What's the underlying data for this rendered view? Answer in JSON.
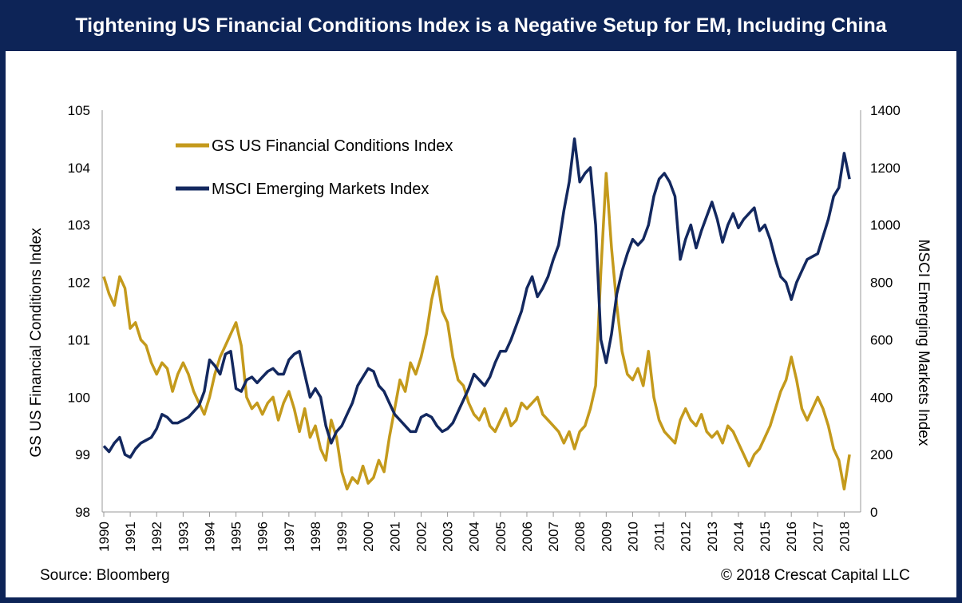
{
  "title": "Tightening US Financial Conditions Index is a Negative Setup for EM, Including China",
  "source": "Source: Bloomberg",
  "copyright": "© 2018 Crescat Capital LLC",
  "colors": {
    "gs": "#c49a1c",
    "msci": "#13285f",
    "frame": "#0d2457"
  },
  "chart_data": {
    "type": "line",
    "title": "Tightening US Financial Conditions Index is a Negative Setup for EM, Including China",
    "x_ticks": [
      "1990",
      "1991",
      "1992",
      "1993",
      "1994",
      "1995",
      "1996",
      "1997",
      "1998",
      "1999",
      "2000",
      "2001",
      "2002",
      "2003",
      "2004",
      "2005",
      "2006",
      "2007",
      "2008",
      "2009",
      "2010",
      "2011",
      "2012",
      "2013",
      "2014",
      "2015",
      "2016",
      "2017",
      "2018"
    ],
    "y_left": {
      "label": "GS US Financial Conditions Index",
      "range": [
        98,
        105
      ],
      "ticks": [
        "98",
        "99",
        "100",
        "101",
        "102",
        "103",
        "104",
        "105"
      ]
    },
    "y_right": {
      "label": "MSCI Emerging Markets Index",
      "range": [
        0,
        1400
      ],
      "ticks": [
        "0",
        "200",
        "400",
        "600",
        "800",
        "1000",
        "1200",
        "1400"
      ]
    },
    "legend_position": "top-left",
    "grid": false,
    "series": [
      {
        "name": "GS US Financial Conditions Index",
        "axis": "left",
        "points": [
          [
            1990.0,
            102.1
          ],
          [
            1990.2,
            101.8
          ],
          [
            1990.4,
            101.6
          ],
          [
            1990.6,
            102.1
          ],
          [
            1990.8,
            101.9
          ],
          [
            1991.0,
            101.2
          ],
          [
            1991.2,
            101.3
          ],
          [
            1991.4,
            101.0
          ],
          [
            1991.6,
            100.9
          ],
          [
            1991.8,
            100.6
          ],
          [
            1992.0,
            100.4
          ],
          [
            1992.2,
            100.6
          ],
          [
            1992.4,
            100.5
          ],
          [
            1992.6,
            100.1
          ],
          [
            1992.8,
            100.4
          ],
          [
            1993.0,
            100.6
          ],
          [
            1993.2,
            100.4
          ],
          [
            1993.4,
            100.1
          ],
          [
            1993.6,
            99.9
          ],
          [
            1993.8,
            99.7
          ],
          [
            1994.0,
            100.0
          ],
          [
            1994.2,
            100.4
          ],
          [
            1994.4,
            100.7
          ],
          [
            1994.6,
            100.9
          ],
          [
            1994.8,
            101.1
          ],
          [
            1995.0,
            101.3
          ],
          [
            1995.2,
            100.9
          ],
          [
            1995.4,
            100.0
          ],
          [
            1995.6,
            99.8
          ],
          [
            1995.8,
            99.9
          ],
          [
            1996.0,
            99.7
          ],
          [
            1996.2,
            99.9
          ],
          [
            1996.4,
            100.0
          ],
          [
            1996.6,
            99.6
          ],
          [
            1996.8,
            99.9
          ],
          [
            1997.0,
            100.1
          ],
          [
            1997.2,
            99.8
          ],
          [
            1997.4,
            99.4
          ],
          [
            1997.6,
            99.8
          ],
          [
            1997.8,
            99.3
          ],
          [
            1998.0,
            99.5
          ],
          [
            1998.2,
            99.1
          ],
          [
            1998.4,
            98.9
          ],
          [
            1998.6,
            99.6
          ],
          [
            1998.8,
            99.3
          ],
          [
            1999.0,
            98.7
          ],
          [
            1999.2,
            98.4
          ],
          [
            1999.4,
            98.6
          ],
          [
            1999.6,
            98.5
          ],
          [
            1999.8,
            98.8
          ],
          [
            2000.0,
            98.5
          ],
          [
            2000.2,
            98.6
          ],
          [
            2000.4,
            98.9
          ],
          [
            2000.6,
            98.7
          ],
          [
            2000.8,
            99.3
          ],
          [
            2001.0,
            99.8
          ],
          [
            2001.2,
            100.3
          ],
          [
            2001.4,
            100.1
          ],
          [
            2001.6,
            100.6
          ],
          [
            2001.8,
            100.4
          ],
          [
            2002.0,
            100.7
          ],
          [
            2002.2,
            101.1
          ],
          [
            2002.4,
            101.7
          ],
          [
            2002.6,
            102.1
          ],
          [
            2002.8,
            101.5
          ],
          [
            2003.0,
            101.3
          ],
          [
            2003.2,
            100.7
          ],
          [
            2003.4,
            100.3
          ],
          [
            2003.6,
            100.2
          ],
          [
            2003.8,
            99.9
          ],
          [
            2004.0,
            99.7
          ],
          [
            2004.2,
            99.6
          ],
          [
            2004.4,
            99.8
          ],
          [
            2004.6,
            99.5
          ],
          [
            2004.8,
            99.4
          ],
          [
            2005.0,
            99.6
          ],
          [
            2005.2,
            99.8
          ],
          [
            2005.4,
            99.5
          ],
          [
            2005.6,
            99.6
          ],
          [
            2005.8,
            99.9
          ],
          [
            2006.0,
            99.8
          ],
          [
            2006.2,
            99.9
          ],
          [
            2006.4,
            100.0
          ],
          [
            2006.6,
            99.7
          ],
          [
            2006.8,
            99.6
          ],
          [
            2007.0,
            99.5
          ],
          [
            2007.2,
            99.4
          ],
          [
            2007.4,
            99.2
          ],
          [
            2007.6,
            99.4
          ],
          [
            2007.8,
            99.1
          ],
          [
            2008.0,
            99.4
          ],
          [
            2008.2,
            99.5
          ],
          [
            2008.4,
            99.8
          ],
          [
            2008.6,
            100.2
          ],
          [
            2008.8,
            102.2
          ],
          [
            2009.0,
            103.9
          ],
          [
            2009.2,
            102.6
          ],
          [
            2009.4,
            101.6
          ],
          [
            2009.6,
            100.8
          ],
          [
            2009.8,
            100.4
          ],
          [
            2010.0,
            100.3
          ],
          [
            2010.2,
            100.5
          ],
          [
            2010.4,
            100.2
          ],
          [
            2010.6,
            100.8
          ],
          [
            2010.8,
            100.0
          ],
          [
            2011.0,
            99.6
          ],
          [
            2011.2,
            99.4
          ],
          [
            2011.4,
            99.3
          ],
          [
            2011.6,
            99.2
          ],
          [
            2011.8,
            99.6
          ],
          [
            2012.0,
            99.8
          ],
          [
            2012.2,
            99.6
          ],
          [
            2012.4,
            99.5
          ],
          [
            2012.6,
            99.7
          ],
          [
            2012.8,
            99.4
          ],
          [
            2013.0,
            99.3
          ],
          [
            2013.2,
            99.4
          ],
          [
            2013.4,
            99.2
          ],
          [
            2013.6,
            99.5
          ],
          [
            2013.8,
            99.4
          ],
          [
            2014.0,
            99.2
          ],
          [
            2014.2,
            99.0
          ],
          [
            2014.4,
            98.8
          ],
          [
            2014.6,
            99.0
          ],
          [
            2014.8,
            99.1
          ],
          [
            2015.0,
            99.3
          ],
          [
            2015.2,
            99.5
          ],
          [
            2015.4,
            99.8
          ],
          [
            2015.6,
            100.1
          ],
          [
            2015.8,
            100.3
          ],
          [
            2016.0,
            100.7
          ],
          [
            2016.2,
            100.3
          ],
          [
            2016.4,
            99.8
          ],
          [
            2016.6,
            99.6
          ],
          [
            2016.8,
            99.8
          ],
          [
            2017.0,
            100.0
          ],
          [
            2017.2,
            99.8
          ],
          [
            2017.4,
            99.5
          ],
          [
            2017.6,
            99.1
          ],
          [
            2017.8,
            98.9
          ],
          [
            2018.0,
            98.4
          ],
          [
            2018.2,
            99.0
          ]
        ]
      },
      {
        "name": "MSCI Emerging Markets Index",
        "axis": "right",
        "points": [
          [
            1990.0,
            230
          ],
          [
            1990.2,
            210
          ],
          [
            1990.4,
            240
          ],
          [
            1990.6,
            260
          ],
          [
            1990.8,
            200
          ],
          [
            1991.0,
            190
          ],
          [
            1991.2,
            220
          ],
          [
            1991.4,
            240
          ],
          [
            1991.6,
            250
          ],
          [
            1991.8,
            260
          ],
          [
            1992.0,
            290
          ],
          [
            1992.2,
            340
          ],
          [
            1992.4,
            330
          ],
          [
            1992.6,
            310
          ],
          [
            1992.8,
            310
          ],
          [
            1993.0,
            320
          ],
          [
            1993.2,
            330
          ],
          [
            1993.4,
            350
          ],
          [
            1993.6,
            370
          ],
          [
            1993.8,
            420
          ],
          [
            1994.0,
            530
          ],
          [
            1994.2,
            510
          ],
          [
            1994.4,
            480
          ],
          [
            1994.6,
            550
          ],
          [
            1994.8,
            560
          ],
          [
            1995.0,
            430
          ],
          [
            1995.2,
            420
          ],
          [
            1995.4,
            460
          ],
          [
            1995.6,
            470
          ],
          [
            1995.8,
            450
          ],
          [
            1996.0,
            470
          ],
          [
            1996.2,
            490
          ],
          [
            1996.4,
            500
          ],
          [
            1996.6,
            480
          ],
          [
            1996.8,
            480
          ],
          [
            1997.0,
            530
          ],
          [
            1997.2,
            550
          ],
          [
            1997.4,
            560
          ],
          [
            1997.6,
            480
          ],
          [
            1997.8,
            400
          ],
          [
            1998.0,
            430
          ],
          [
            1998.2,
            400
          ],
          [
            1998.4,
            300
          ],
          [
            1998.6,
            240
          ],
          [
            1998.8,
            280
          ],
          [
            1999.0,
            300
          ],
          [
            1999.2,
            340
          ],
          [
            1999.4,
            380
          ],
          [
            1999.6,
            440
          ],
          [
            1999.8,
            470
          ],
          [
            2000.0,
            500
          ],
          [
            2000.2,
            490
          ],
          [
            2000.4,
            440
          ],
          [
            2000.6,
            420
          ],
          [
            2000.8,
            380
          ],
          [
            2001.0,
            340
          ],
          [
            2001.2,
            320
          ],
          [
            2001.4,
            300
          ],
          [
            2001.6,
            280
          ],
          [
            2001.8,
            280
          ],
          [
            2002.0,
            330
          ],
          [
            2002.2,
            340
          ],
          [
            2002.4,
            330
          ],
          [
            2002.6,
            300
          ],
          [
            2002.8,
            280
          ],
          [
            2003.0,
            290
          ],
          [
            2003.2,
            310
          ],
          [
            2003.4,
            350
          ],
          [
            2003.6,
            390
          ],
          [
            2003.8,
            430
          ],
          [
            2004.0,
            480
          ],
          [
            2004.2,
            460
          ],
          [
            2004.4,
            440
          ],
          [
            2004.6,
            470
          ],
          [
            2004.8,
            520
          ],
          [
            2005.0,
            560
          ],
          [
            2005.2,
            560
          ],
          [
            2005.4,
            600
          ],
          [
            2005.6,
            650
          ],
          [
            2005.8,
            700
          ],
          [
            2006.0,
            780
          ],
          [
            2006.2,
            820
          ],
          [
            2006.4,
            750
          ],
          [
            2006.6,
            780
          ],
          [
            2006.8,
            820
          ],
          [
            2007.0,
            880
          ],
          [
            2007.2,
            930
          ],
          [
            2007.4,
            1050
          ],
          [
            2007.6,
            1150
          ],
          [
            2007.8,
            1300
          ],
          [
            2008.0,
            1150
          ],
          [
            2008.2,
            1180
          ],
          [
            2008.4,
            1200
          ],
          [
            2008.6,
            1000
          ],
          [
            2008.8,
            600
          ],
          [
            2009.0,
            520
          ],
          [
            2009.2,
            620
          ],
          [
            2009.4,
            760
          ],
          [
            2009.6,
            840
          ],
          [
            2009.8,
            900
          ],
          [
            2010.0,
            950
          ],
          [
            2010.2,
            930
          ],
          [
            2010.4,
            950
          ],
          [
            2010.6,
            1000
          ],
          [
            2010.8,
            1100
          ],
          [
            2011.0,
            1160
          ],
          [
            2011.2,
            1180
          ],
          [
            2011.4,
            1150
          ],
          [
            2011.6,
            1100
          ],
          [
            2011.8,
            880
          ],
          [
            2012.0,
            950
          ],
          [
            2012.2,
            1000
          ],
          [
            2012.4,
            920
          ],
          [
            2012.6,
            980
          ],
          [
            2012.8,
            1030
          ],
          [
            2013.0,
            1080
          ],
          [
            2013.2,
            1020
          ],
          [
            2013.4,
            940
          ],
          [
            2013.6,
            1000
          ],
          [
            2013.8,
            1040
          ],
          [
            2014.0,
            990
          ],
          [
            2014.2,
            1020
          ],
          [
            2014.4,
            1040
          ],
          [
            2014.6,
            1060
          ],
          [
            2014.8,
            980
          ],
          [
            2015.0,
            1000
          ],
          [
            2015.2,
            950
          ],
          [
            2015.4,
            880
          ],
          [
            2015.6,
            820
          ],
          [
            2015.8,
            800
          ],
          [
            2016.0,
            740
          ],
          [
            2016.2,
            800
          ],
          [
            2016.4,
            840
          ],
          [
            2016.6,
            880
          ],
          [
            2016.8,
            890
          ],
          [
            2017.0,
            900
          ],
          [
            2017.2,
            960
          ],
          [
            2017.4,
            1020
          ],
          [
            2017.6,
            1100
          ],
          [
            2017.8,
            1130
          ],
          [
            2018.0,
            1250
          ],
          [
            2018.2,
            1160
          ]
        ]
      }
    ]
  }
}
